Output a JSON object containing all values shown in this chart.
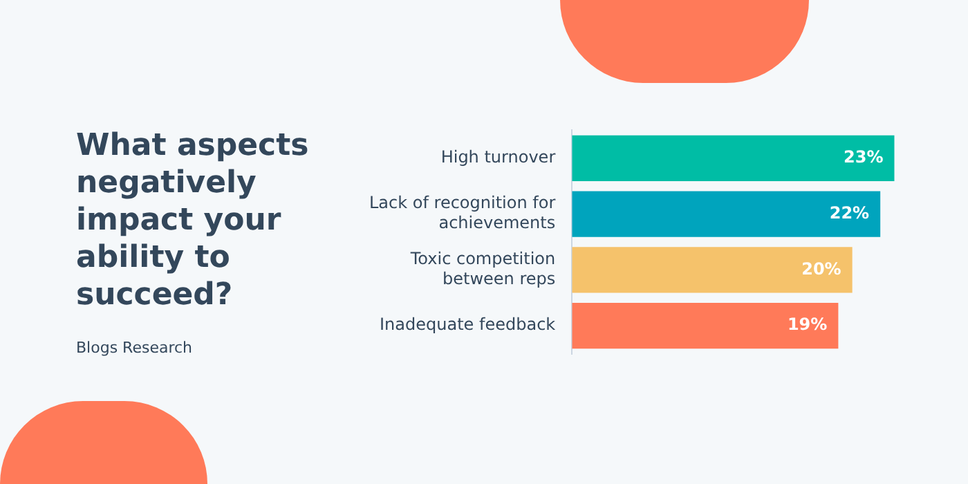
{
  "chart_data": {
    "type": "bar",
    "orientation": "horizontal",
    "title": "What aspects negatively impact your ability to succeed?",
    "annotations": [
      "Blogs Research"
    ],
    "categories": [
      "High turnover",
      "Lack of recognition for achievements",
      "Toxic competition between reps",
      "Inadequate feedback"
    ],
    "values": [
      23,
      22,
      20,
      19
    ],
    "value_labels": [
      "23%",
      "22%",
      "20%",
      "19%"
    ],
    "colors": [
      "#00bda5",
      "#00a4bd",
      "#f5c26b",
      "#ff7a59"
    ],
    "legend": false
  }
}
